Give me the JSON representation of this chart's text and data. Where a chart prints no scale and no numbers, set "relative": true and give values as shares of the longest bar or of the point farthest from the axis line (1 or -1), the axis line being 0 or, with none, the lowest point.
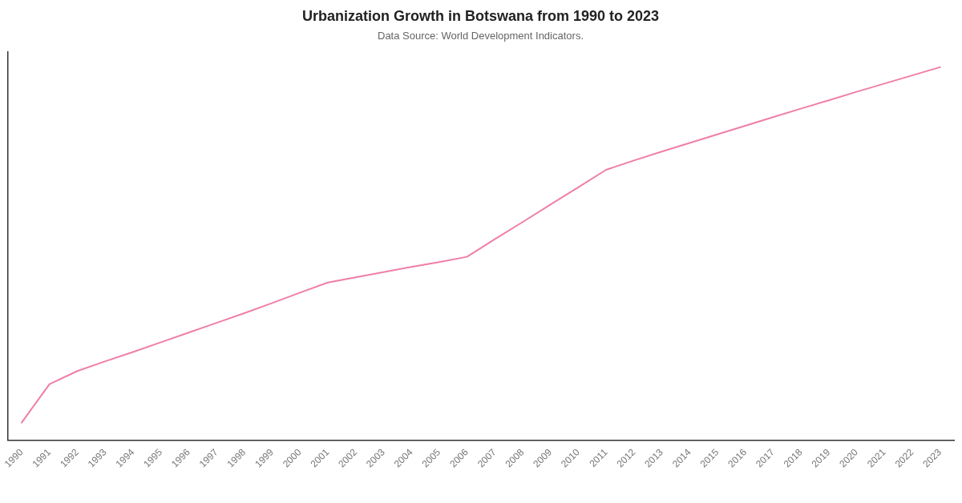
{
  "chart_data": {
    "type": "line",
    "title": "Urbanization Growth in Botswana from 1990 to 2023",
    "subtitle": "Data Source: World Development Indicators.",
    "categories": [
      "1990",
      "1991",
      "1992",
      "1993",
      "1994",
      "1995",
      "1996",
      "1997",
      "1998",
      "1999",
      "2000",
      "2001",
      "2002",
      "2003",
      "2004",
      "2005",
      "2006",
      "2007",
      "2008",
      "2009",
      "2010",
      "2011",
      "2012",
      "2013",
      "2014",
      "2015",
      "2016",
      "2017",
      "2018",
      "2019",
      "2020",
      "2021",
      "2022",
      "2023"
    ],
    "series": [
      {
        "color": "#ef7ea9",
        "values": [
          0.048,
          0.151,
          0.186,
          0.212,
          0.237,
          0.263,
          0.289,
          0.315,
          0.341,
          0.368,
          0.396,
          0.423,
          0.437,
          0.451,
          0.465,
          0.478,
          0.492,
          0.539,
          0.585,
          0.632,
          0.678,
          0.725,
          0.75,
          0.774,
          0.797,
          0.82,
          0.843,
          0.866,
          0.889,
          0.911,
          0.934,
          0.956,
          0.978,
          1.0
        ]
      }
    ],
    "relative": true,
    "grid": false,
    "legend": false,
    "marker": "none"
  }
}
